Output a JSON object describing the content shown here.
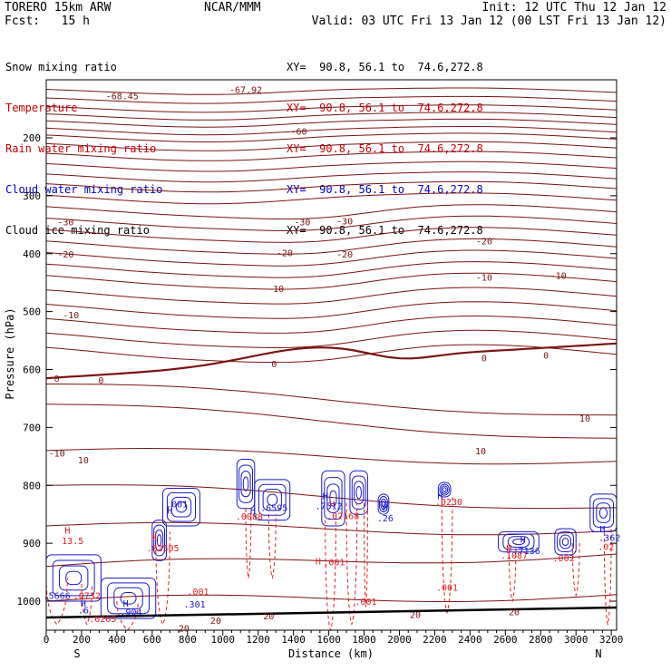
{
  "header": {
    "model": "TORERO 15km ARW",
    "forecast": "Fcst:   15 h",
    "center": "NCAR/MMM",
    "init": "Init: 12 UTC Thu 12 Jan 12",
    "valid": "Valid: 03 UTC Fri 13 Jan 12 (00 LST Fri 13 Jan 12)"
  },
  "legend": [
    {
      "label": "Snow mixing ratio",
      "color": "#000000",
      "xy": "XY=  90.8, 56.1 to  74.6,272.8"
    },
    {
      "label": "Temperature",
      "color": "#cc0000",
      "xy": "XY=  90.8, 56.1 to  74.6,272.8"
    },
    {
      "label": "Rain water mixing ratio",
      "color": "#cc0000",
      "xy": "XY=  90.8, 56.1 to  74.6,272.8"
    },
    {
      "label": "Cloud water mixing ratio",
      "color": "#0000cc",
      "xy": "XY=  90.8, 56.1 to  74.6,272.8"
    },
    {
      "label": "Cloud ice mixing ratio",
      "color": "#000000",
      "xy": "XY=  90.8, 56.1 to  74.6,272.8"
    }
  ],
  "chart_data": {
    "type": "contour-cross-section",
    "xlabel": "Distance (km)",
    "ylabel": "Pressure (hPa)",
    "xlim": [
      0,
      3230
    ],
    "ylim": [
      1050,
      100
    ],
    "x_ticks": [
      "0",
      "200",
      "400",
      "600",
      "800",
      "1000",
      "1200",
      "1400",
      "1600",
      "1800",
      "2000",
      "2200",
      "2400",
      "2600",
      "2800",
      "3000",
      "3200"
    ],
    "y_ticks": [
      "200",
      "300",
      "400",
      "500",
      "600",
      "700",
      "800",
      "900",
      "1000"
    ],
    "x_end_labels": {
      "left": "S",
      "right": "N"
    },
    "colors": {
      "temperature": "#7a1414",
      "zero_isotherm": "#7a1414",
      "rain": "#e02020",
      "cloud_water": "#1a1acc",
      "ground": "#000000"
    },
    "temperature_labels": [
      {
        "text": "-67.92",
        "x": 1130,
        "p": 116
      },
      {
        "text": "-68.45",
        "x": 430,
        "p": 127
      },
      {
        "text": "-60",
        "x": 1430,
        "p": 188
      },
      {
        "text": "-30",
        "x": 110,
        "p": 345
      },
      {
        "text": "-30",
        "x": 1450,
        "p": 345
      },
      {
        "text": "-30",
        "x": 1690,
        "p": 343
      },
      {
        "text": "-20",
        "x": 2480,
        "p": 378
      },
      {
        "text": "-20",
        "x": 110,
        "p": 400
      },
      {
        "text": "-20",
        "x": 1350,
        "p": 398
      },
      {
        "text": "-20",
        "x": 1690,
        "p": 400
      },
      {
        "text": "-10",
        "x": 1300,
        "p": 460
      },
      {
        "text": "-10",
        "x": 2480,
        "p": 440
      },
      {
        "text": "-10",
        "x": 2900,
        "p": 437
      },
      {
        "text": "-10",
        "x": 140,
        "p": 505
      },
      {
        "text": "0",
        "x": 1290,
        "p": 590
      },
      {
        "text": "0",
        "x": 2480,
        "p": 580
      },
      {
        "text": "0",
        "x": 2830,
        "p": 575
      },
      {
        "text": "0",
        "x": 60,
        "p": 615
      },
      {
        "text": "0",
        "x": 310,
        "p": 618
      },
      {
        "text": "10",
        "x": 3050,
        "p": 684
      },
      {
        "text": "10",
        "x": 2460,
        "p": 740
      },
      {
        "text": "-10",
        "x": 60,
        "p": 744
      },
      {
        "text": "10",
        "x": 210,
        "p": 756
      },
      {
        "text": "20",
        "x": 960,
        "p": 1033
      },
      {
        "text": "20",
        "x": 1260,
        "p": 1025
      },
      {
        "text": "20",
        "x": 2090,
        "p": 1023
      },
      {
        "text": "20",
        "x": 2650,
        "p": 1018
      },
      {
        "text": "20",
        "x": 780,
        "p": 1046
      }
    ],
    "rain_labels": [
      {
        "text": "H",
        "x": 120,
        "p": 877
      },
      {
        "text": "13.5",
        "x": 150,
        "p": 895
      },
      {
        "text": "H",
        "x": 610,
        "p": 890
      },
      {
        "text": ".02505",
        "x": 660,
        "p": 908
      },
      {
        "text": ".0088",
        "x": 1150,
        "p": 853
      },
      {
        "text": "H",
        "x": 1620,
        "p": 832
      },
      {
        "text": ".02168",
        "x": 1680,
        "p": 852
      },
      {
        "text": ".0230",
        "x": 2280,
        "p": 828
      },
      {
        "text": "H",
        "x": 1540,
        "p": 930
      },
      {
        "text": ".001",
        "x": 1630,
        "p": 932
      },
      {
        "text": ".001",
        "x": 860,
        "p": 983
      },
      {
        "text": ".001",
        "x": 1810,
        "p": 1000
      },
      {
        "text": ".001",
        "x": 2270,
        "p": 976
      },
      {
        "text": ".002",
        "x": 2930,
        "p": 925
      },
      {
        "text": ".02",
        "x": 3170,
        "p": 905
      },
      {
        "text": "H",
        "x": 2620,
        "p": 908
      },
      {
        "text": ".1087",
        "x": 2650,
        "p": 920
      },
      {
        "text": ".0732",
        "x": 230,
        "p": 990
      },
      {
        "text": ".0265",
        "x": 320,
        "p": 1030
      }
    ],
    "cloud_water_labels": [
      {
        "text": ".001",
        "x": 740,
        "p": 832
      },
      {
        "text": ".6595",
        "x": 1290,
        "p": 838
      },
      {
        "text": ".7512",
        "x": 1600,
        "p": 835
      },
      {
        "text": "H",
        "x": 1580,
        "p": 818
      },
      {
        "text": "H",
        "x": 1920,
        "p": 838
      },
      {
        "text": ".26",
        "x": 1920,
        "p": 856
      },
      {
        "text": "H",
        "x": 2230,
        "p": 818
      },
      {
        "text": "H",
        "x": 700,
        "p": 843
      },
      {
        "text": ".301",
        "x": 840,
        "p": 1005
      },
      {
        "text": ".904",
        "x": 480,
        "p": 1018
      },
      {
        "text": "H",
        "x": 450,
        "p": 1003
      },
      {
        "text": "H",
        "x": 2700,
        "p": 893
      },
      {
        "text": ".7136",
        "x": 2720,
        "p": 912
      },
      {
        "text": "H",
        "x": 1170,
        "p": 843
      },
      {
        "text": "H",
        "x": 3150,
        "p": 875
      },
      {
        "text": ".362",
        "x": 3190,
        "p": 890
      },
      {
        "text": ".5666",
        "x": 60,
        "p": 990
      },
      {
        "text": "H",
        "x": 210,
        "p": 1003
      },
      {
        "text": ".6",
        "x": 210,
        "p": 1015
      }
    ]
  }
}
